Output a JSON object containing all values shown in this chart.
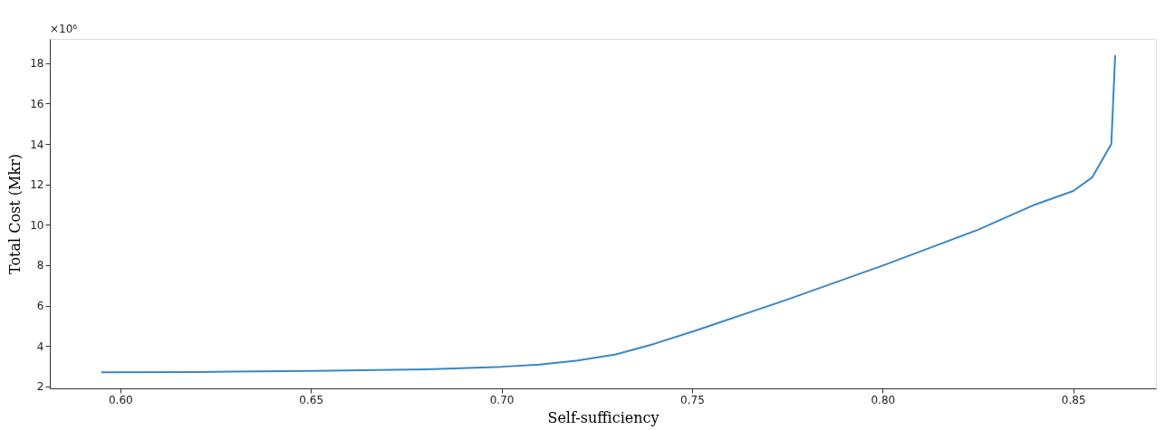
{
  "chart_data": {
    "type": "line",
    "xlabel": "Self-sufficiency",
    "ylabel": "Total Cost (Mkr)",
    "annotations": [
      "×10⁶"
    ],
    "x": [
      0.595,
      0.62,
      0.65,
      0.68,
      0.7,
      0.71,
      0.72,
      0.73,
      0.74,
      0.75,
      0.775,
      0.8,
      0.825,
      0.84,
      0.85,
      0.855,
      0.86,
      0.861
    ],
    "series": [
      {
        "color": "#3a87c4",
        "values": [
          2.7,
          2.71,
          2.76,
          2.84,
          2.97,
          3.08,
          3.28,
          3.58,
          4.1,
          4.7,
          6.3,
          7.98,
          9.75,
          11.0,
          11.67,
          12.35,
          14.0,
          18.4
        ]
      }
    ],
    "xlim": [
      0.5815,
      0.8717
    ],
    "xticks": [
      {
        "value": 0.6,
        "label": "0.60"
      },
      {
        "value": 0.65,
        "label": "0.65"
      },
      {
        "value": 0.7,
        "label": "0.70"
      },
      {
        "value": 0.75,
        "label": "0.75"
      },
      {
        "value": 0.8,
        "label": "0.80"
      },
      {
        "value": 0.85,
        "label": "0.85"
      }
    ],
    "ylim": [
      1.9,
      19.2
    ],
    "yticks": [
      2,
      4,
      6,
      8,
      10,
      12,
      14,
      16,
      18
    ],
    "grid": false,
    "line_style": "solid",
    "marker": "none"
  }
}
